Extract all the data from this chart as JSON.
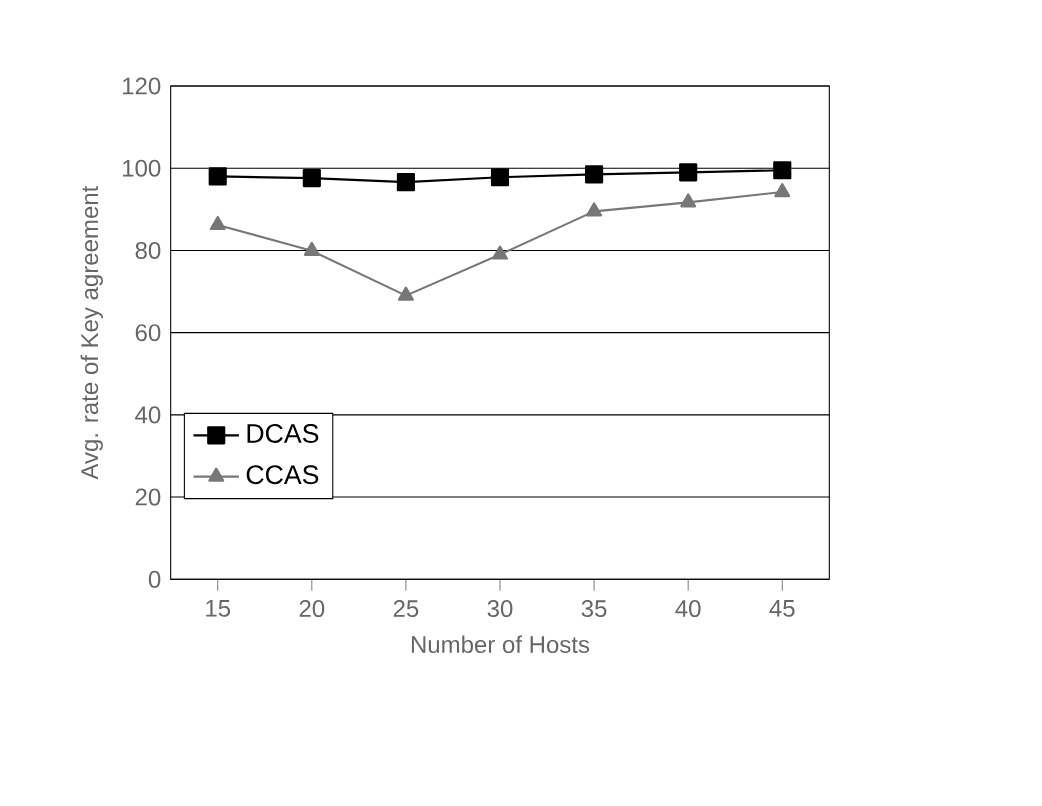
{
  "chart_data": {
    "type": "line",
    "xlabel": "Number of Hosts",
    "ylabel": "Avg. rate of Key agreement",
    "categories": [
      "15",
      "20",
      "25",
      "30",
      "35",
      "40",
      "45"
    ],
    "series": [
      {
        "name": "DCAS",
        "color": "#000000",
        "marker": "square",
        "values": [
          98,
          97.6,
          96.6,
          97.8,
          98.5,
          99,
          99.5
        ]
      },
      {
        "name": "CCAS",
        "color": "#777777",
        "marker": "triangle",
        "values": [
          86.2,
          79.9,
          69,
          79,
          89.5,
          91.7,
          94.2
        ]
      }
    ],
    "ylim": [
      0,
      120
    ],
    "yticks": [
      0,
      20,
      40,
      60,
      80,
      100,
      120
    ],
    "grid": "y",
    "legend": "left",
    "line_style": "solid"
  }
}
